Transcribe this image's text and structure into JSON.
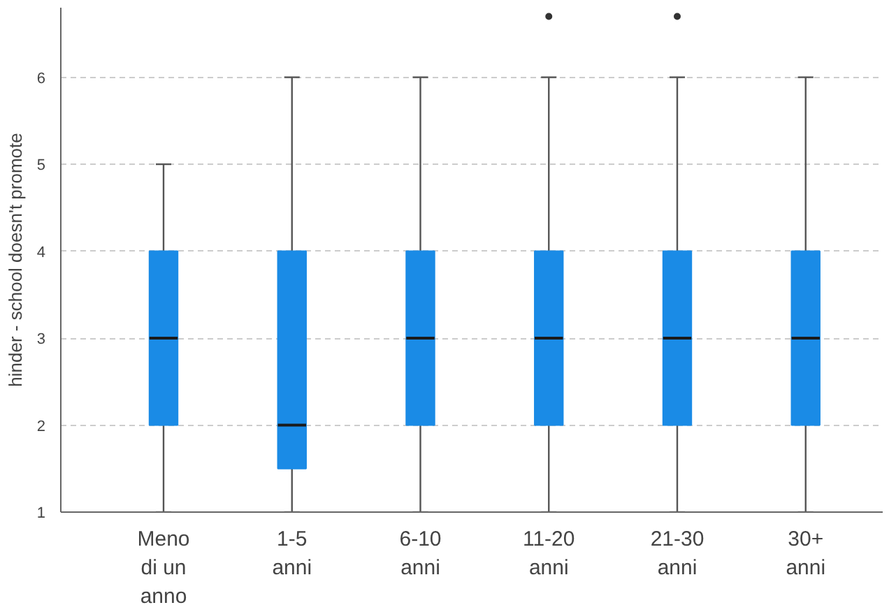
{
  "chart_data": {
    "type": "box",
    "ylabel": "hinder - school doesn't promote",
    "categories": [
      "Meno di un anno",
      "1-5 anni",
      "6-10 anni",
      "11-20 anni",
      "21-30 anni",
      "30+ anni"
    ],
    "boxes": [
      {
        "low": 1,
        "q1": 2,
        "median": 3,
        "q3": 4,
        "high": 5
      },
      {
        "low": 1,
        "q1": 1.5,
        "median": 2,
        "q3": 4,
        "high": 6
      },
      {
        "low": 1,
        "q1": 2,
        "median": 3,
        "q3": 4,
        "high": 6
      },
      {
        "low": 1,
        "q1": 2,
        "median": 3,
        "q3": 4,
        "high": 6,
        "outliers": [
          6.7
        ]
      },
      {
        "low": 1,
        "q1": 2,
        "median": 3,
        "q3": 4,
        "high": 6,
        "outliers": [
          6.7
        ]
      },
      {
        "low": 1,
        "q1": 2,
        "median": 3,
        "q3": 4,
        "high": 6
      }
    ],
    "color": "#1a8be6",
    "ylim": [
      1,
      6.8
    ],
    "yticks": [
      1,
      2,
      3,
      4,
      5,
      6
    ],
    "grid": "y"
  }
}
